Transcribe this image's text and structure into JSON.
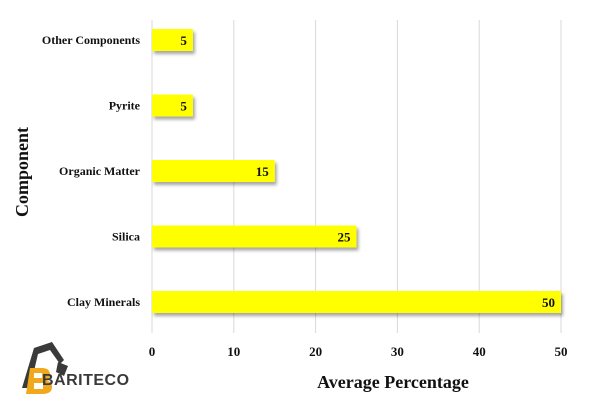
{
  "chart_data": {
    "type": "bar",
    "orientation": "horizontal",
    "categories": [
      "Other Components",
      "Pyrite",
      "Organic Matter",
      "Silica",
      "Clay Minerals"
    ],
    "values": [
      5,
      5,
      15,
      25,
      50
    ],
    "xlabel": "Average Percentage",
    "ylabel": "Component",
    "xlim": [
      0,
      50
    ],
    "xticks": [
      "0",
      "10",
      "20",
      "30",
      "40",
      "50"
    ],
    "grid": "vertical",
    "bar_color": "#ffff00",
    "value_labels": [
      "5",
      "5",
      "15",
      "25",
      "50"
    ]
  },
  "logo": {
    "text": "BARITECO",
    "primary_color": "#f0a81c",
    "secondary_color": "#3a3a3a"
  }
}
